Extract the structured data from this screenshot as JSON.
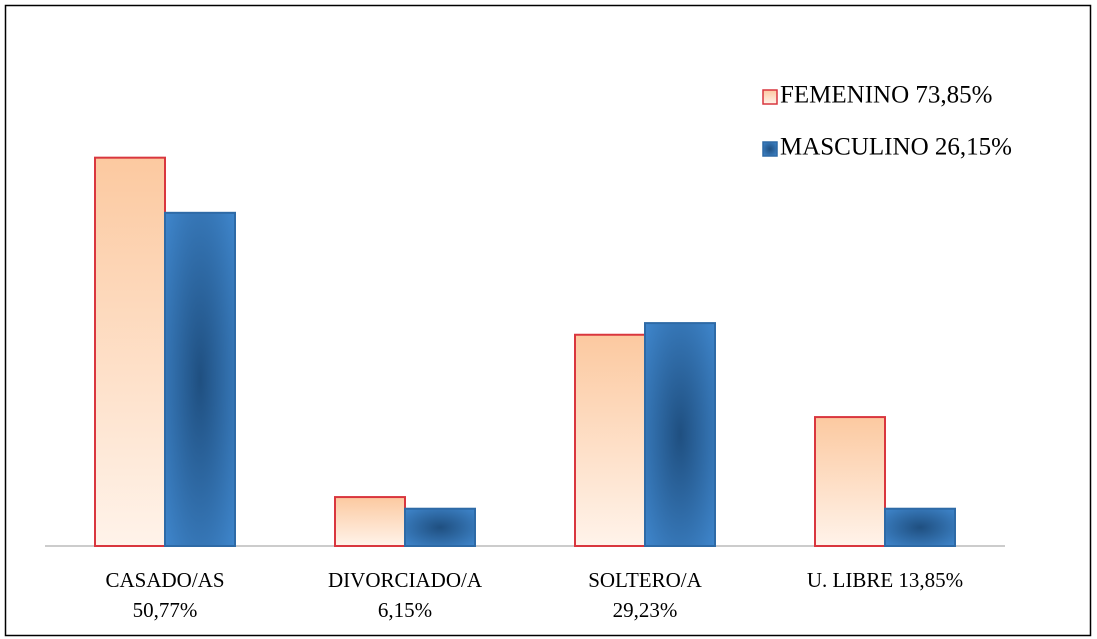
{
  "chart_data": {
    "type": "bar",
    "categories": [
      [
        "CASADO/AS",
        "50,77%"
      ],
      [
        "DIVORCIADO/A",
        "6,15%"
      ],
      [
        "SOLTERO/A",
        "29,23%"
      ],
      [
        "U. LIBRE 13,85%"
      ]
    ],
    "series": [
      {
        "name": "FEMENINO 73,85%",
        "color": "#fcc9a0",
        "border": "#d9363e",
        "values": [
          50,
          6.3,
          27.2,
          16.6
        ]
      },
      {
        "name": "MASCULINO 26,15%",
        "color": "#3b7bbd",
        "border": "#2e6aa6",
        "values": [
          42.9,
          4.8,
          28.7,
          4.8
        ]
      }
    ],
    "ylim": [
      0,
      60
    ],
    "legend": "top-right"
  }
}
